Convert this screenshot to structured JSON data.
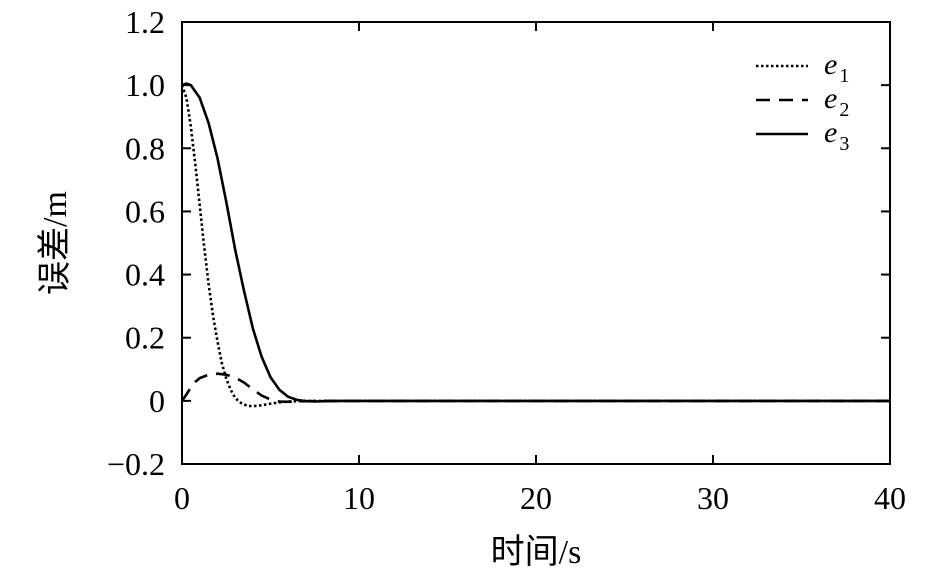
{
  "chart_data": {
    "type": "line",
    "xlabel": "时间/s",
    "ylabel": "误差/m",
    "xlim": [
      0,
      40
    ],
    "ylim": [
      -0.2,
      1.2
    ],
    "xticks": [
      0,
      10,
      20,
      30,
      40
    ],
    "yticks": [
      -0.2,
      0,
      0.2,
      0.4,
      0.6,
      0.8,
      1.0,
      1.2
    ],
    "xtick_labels": [
      "0",
      "10",
      "20",
      "30",
      "40"
    ],
    "ytick_labels": [
      "−0.2",
      "0",
      "0.2",
      "0.4",
      "0.6",
      "0.8",
      "1.0",
      "1.2"
    ],
    "grid": false,
    "legend_position": "top-right",
    "series": [
      {
        "name": "e",
        "subscript": "1",
        "style": "dotted",
        "x": [
          0,
          0.25,
          0.5,
          0.75,
          1.0,
          1.25,
          1.5,
          1.75,
          2.0,
          2.25,
          2.5,
          2.75,
          3.0,
          3.25,
          3.5,
          3.75,
          4.0,
          4.5,
          5.0,
          5.5,
          6.0,
          7.0,
          8.0,
          10,
          40
        ],
        "y": [
          1.0,
          0.96,
          0.87,
          0.75,
          0.62,
          0.49,
          0.37,
          0.27,
          0.19,
          0.12,
          0.07,
          0.035,
          0.01,
          -0.004,
          -0.012,
          -0.016,
          -0.017,
          -0.014,
          -0.009,
          -0.005,
          -0.002,
          0.0,
          0.0,
          0.0,
          0.0
        ]
      },
      {
        "name": "e",
        "subscript": "2",
        "style": "dashed",
        "x": [
          0,
          0.25,
          0.5,
          0.75,
          1.0,
          1.5,
          2.0,
          2.5,
          3.0,
          3.5,
          4.0,
          4.5,
          5.0,
          5.5,
          6.0,
          7.0,
          8.0,
          10,
          40
        ],
        "y": [
          0.0,
          0.02,
          0.042,
          0.06,
          0.072,
          0.083,
          0.086,
          0.083,
          0.074,
          0.058,
          0.037,
          0.017,
          0.004,
          -0.002,
          -0.003,
          -0.001,
          0.0,
          0.0,
          0.0
        ]
      },
      {
        "name": "e",
        "subscript": "3",
        "style": "solid",
        "x": [
          0,
          0.25,
          0.5,
          1.0,
          1.5,
          2.0,
          2.5,
          3.0,
          3.5,
          4.0,
          4.5,
          5.0,
          5.5,
          6.0,
          6.5,
          7.0,
          7.5,
          8.0,
          9.0,
          10,
          40
        ],
        "y": [
          1.0,
          1.005,
          1.0,
          0.96,
          0.88,
          0.77,
          0.63,
          0.48,
          0.35,
          0.23,
          0.14,
          0.075,
          0.035,
          0.013,
          0.003,
          -0.001,
          -0.002,
          -0.001,
          0.0,
          0.0,
          0.0
        ]
      }
    ]
  }
}
